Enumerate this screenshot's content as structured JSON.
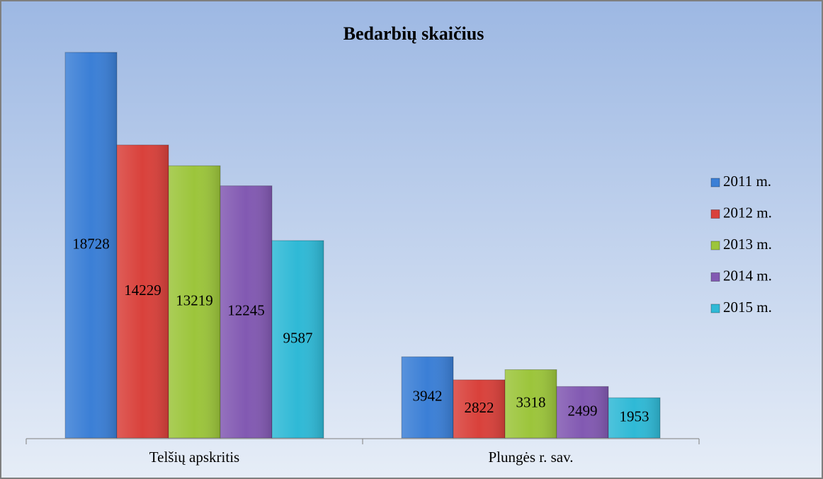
{
  "chart_data": {
    "type": "bar",
    "title": "Bedarbių skaičius",
    "categories": [
      "Telšių apskritis",
      "Plungės r. sav."
    ],
    "series": [
      {
        "name": "2011 m.",
        "color": "#3b7fd6",
        "values": [
          18728,
          3942
        ]
      },
      {
        "name": "2012 m.",
        "color": "#d9413b",
        "values": [
          14229,
          2822
        ]
      },
      {
        "name": "2013 m.",
        "color": "#9cc53b",
        "values": [
          13219,
          3318
        ]
      },
      {
        "name": "2014 m.",
        "color": "#8259b2",
        "values": [
          12245,
          2499
        ]
      },
      {
        "name": "2015 m.",
        "color": "#2fb9d6",
        "values": [
          9587,
          1953
        ]
      }
    ],
    "legend": "right"
  }
}
